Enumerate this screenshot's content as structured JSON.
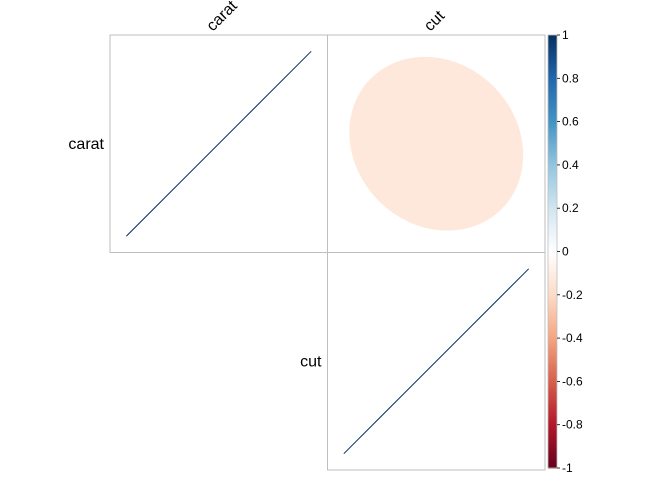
{
  "chart_data": {
    "type": "heatmap",
    "subtype": "correlation-matrix",
    "method": "ellipse",
    "matrix_layout": "upper",
    "variables": [
      "carat",
      "cut"
    ],
    "matrix": [
      [
        1,
        -0.13
      ],
      [
        -0.13,
        1
      ]
    ],
    "colorbar": {
      "min": -1,
      "max": 1,
      "ticks": [
        -1,
        -0.8,
        -0.6,
        -0.4,
        -0.2,
        0,
        0.2,
        0.4,
        0.6,
        0.8,
        1
      ],
      "tick_labels": [
        "-1",
        "-0.8",
        "-0.6",
        "-0.4",
        "-0.2",
        "0",
        "0.2",
        "0.4",
        "0.6",
        "0.8",
        "1"
      ],
      "colors": [
        "#67001F",
        "#B2182B",
        "#D6604D",
        "#F4A582",
        "#FDDBC7",
        "#FFFFFF",
        "#D1E5F0",
        "#92C5DE",
        "#4393C3",
        "#2166AC",
        "#053061"
      ],
      "placement": "right"
    },
    "grid_color": "#BEBEBE",
    "title": "",
    "xlabel": "",
    "ylabel": ""
  }
}
